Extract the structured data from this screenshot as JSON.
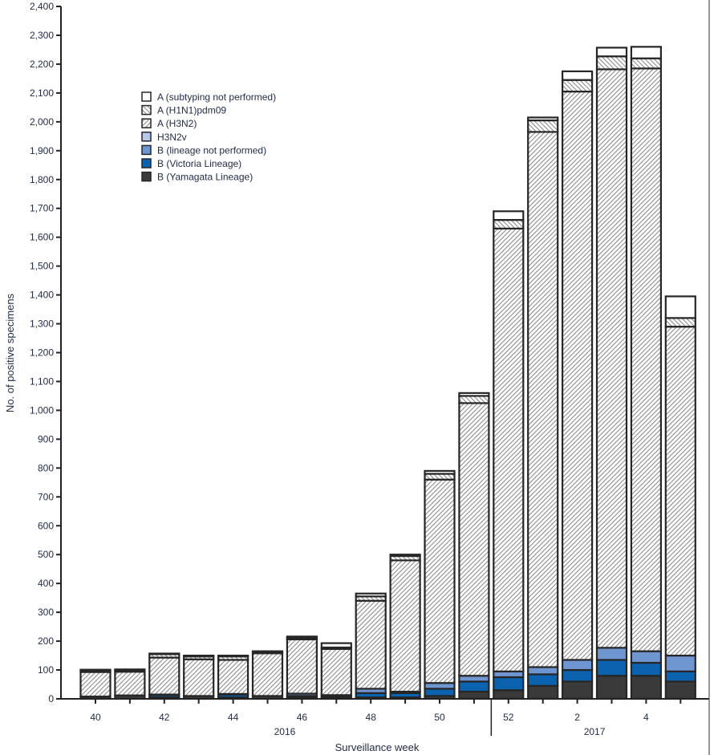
{
  "chart_data": {
    "type": "bar",
    "stacked": true,
    "title": "",
    "xlabel": "Surveillance week",
    "ylabel": "No. of positive specimens",
    "ylim": [
      0,
      2400
    ],
    "yticks": [
      0,
      100,
      200,
      300,
      400,
      500,
      600,
      700,
      800,
      900,
      1000,
      1100,
      1200,
      1300,
      1400,
      1500,
      1600,
      1700,
      1800,
      1900,
      2000,
      2100,
      2200,
      2300,
      2400
    ],
    "ytick_labels": [
      "0",
      "100",
      "200",
      "300",
      "400",
      "500",
      "600",
      "700",
      "800",
      "900",
      "1,000",
      "1,100",
      "1,200",
      "1,300",
      "1,400",
      "1,500",
      "1,600",
      "1,700",
      "1,800",
      "1,900",
      "2,000",
      "2,100",
      "2,200",
      "2,300",
      "2,400"
    ],
    "categories": [
      "40",
      "41",
      "42",
      "43",
      "44",
      "45",
      "46",
      "47",
      "48",
      "49",
      "50",
      "51",
      "52",
      "1",
      "2",
      "3",
      "4",
      "5"
    ],
    "xtick_labels_shown": {
      "0": "40",
      "2": "42",
      "4": "44",
      "6": "46",
      "8": "48",
      "10": "50",
      "12": "52",
      "14": "2",
      "16": "4"
    },
    "year_groups": [
      {
        "label": "2016",
        "start_index": 0,
        "end_index": 11
      },
      {
        "label": "2017",
        "start_index": 12,
        "end_index": 17
      }
    ],
    "legend_position": "top-left",
    "series": [
      {
        "name": "B (Yamagata Lineage)",
        "color": "#3a3a3a",
        "pattern": "solid",
        "values": [
          8,
          12,
          5,
          10,
          5,
          10,
          5,
          5,
          5,
          5,
          10,
          25,
          30,
          45,
          60,
          80,
          80,
          60
        ]
      },
      {
        "name": "B (Victoria Lineage)",
        "color": "#0b63b0",
        "pattern": "solid",
        "values": [
          0,
          0,
          8,
          0,
          10,
          0,
          5,
          3,
          15,
          15,
          25,
          35,
          45,
          40,
          40,
          55,
          45,
          35
        ]
      },
      {
        "name": "B (lineage not performed)",
        "color": "#6f96d1",
        "pattern": "solid",
        "values": [
          0,
          0,
          2,
          0,
          2,
          0,
          8,
          5,
          15,
          5,
          20,
          20,
          20,
          25,
          35,
          42,
          40,
          55
        ]
      },
      {
        "name": "H3N2v",
        "color": "#b7c9ea",
        "pattern": "solid",
        "values": [
          0,
          0,
          0,
          0,
          0,
          0,
          0,
          0,
          0,
          0,
          0,
          0,
          0,
          0,
          0,
          0,
          0,
          0
        ]
      },
      {
        "name": "A (H3N2)",
        "color": "#9a9a9a",
        "pattern": "hatch-down",
        "values": [
          85,
          82,
          128,
          127,
          118,
          148,
          188,
          160,
          305,
          455,
          705,
          945,
          1535,
          1855,
          1970,
          2005,
          2020,
          1140
        ]
      },
      {
        "name": "A (H1N1)pdm09",
        "color": "#9a9a9a",
        "pattern": "hatch-up",
        "values": [
          5,
          5,
          12,
          10,
          12,
          5,
          5,
          5,
          15,
          15,
          20,
          25,
          30,
          40,
          40,
          45,
          35,
          30
        ]
      },
      {
        "name": "A (subtyping not performed)",
        "color": "#ffffff",
        "pattern": "solid",
        "values": [
          3,
          3,
          2,
          3,
          3,
          2,
          5,
          15,
          10,
          5,
          10,
          10,
          30,
          10,
          30,
          30,
          40,
          75
        ]
      }
    ]
  }
}
